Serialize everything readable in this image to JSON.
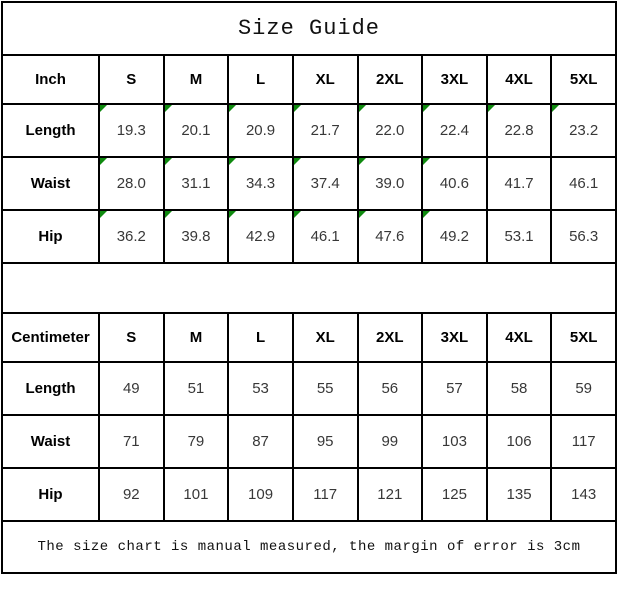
{
  "title": "Size Guide",
  "footer_note": "The size chart is manual measured, the margin of error is 3cm",
  "colors": {
    "grid": "#000000",
    "background": "#ffffff",
    "marker_green": "#0f8a0f",
    "header_text": "#000000",
    "value_text": "#383838"
  },
  "chart_data": [
    {
      "type": "table",
      "title": "Size Guide",
      "unit_label": "Inch",
      "sizes": [
        "S",
        "M",
        "L",
        "XL",
        "2XL",
        "3XL",
        "4XL",
        "5XL"
      ],
      "rows": [
        {
          "label": "Length",
          "values": [
            "19.3",
            "20.1",
            "20.9",
            "21.7",
            "22.0",
            "22.4",
            "22.8",
            "23.2"
          ],
          "markers": [
            1,
            1,
            1,
            1,
            1,
            1,
            1,
            1
          ]
        },
        {
          "label": "Waist",
          "values": [
            "28.0",
            "31.1",
            "34.3",
            "37.4",
            "39.0",
            "40.6",
            "41.7",
            "46.1"
          ],
          "markers": [
            1,
            1,
            1,
            1,
            1,
            1,
            0,
            0
          ]
        },
        {
          "label": "Hip",
          "values": [
            "36.2",
            "39.8",
            "42.9",
            "46.1",
            "47.6",
            "49.2",
            "53.1",
            "56.3"
          ],
          "markers": [
            1,
            1,
            1,
            1,
            1,
            1,
            0,
            0
          ]
        }
      ]
    },
    {
      "type": "table",
      "unit_label": "Centimeter",
      "sizes": [
        "S",
        "M",
        "L",
        "XL",
        "2XL",
        "3XL",
        "4XL",
        "5XL"
      ],
      "rows": [
        {
          "label": "Length",
          "values": [
            "49",
            "51",
            "53",
            "55",
            "56",
            "57",
            "58",
            "59"
          ],
          "markers": [
            0,
            0,
            0,
            0,
            0,
            0,
            0,
            0
          ]
        },
        {
          "label": "Waist",
          "values": [
            "71",
            "79",
            "87",
            "95",
            "99",
            "103",
            "106",
            "117"
          ],
          "markers": [
            0,
            0,
            0,
            0,
            0,
            0,
            0,
            0
          ]
        },
        {
          "label": "Hip",
          "values": [
            "92",
            "101",
            "109",
            "117",
            "121",
            "125",
            "135",
            "143"
          ],
          "markers": [
            0,
            0,
            0,
            0,
            0,
            0,
            0,
            0
          ]
        }
      ]
    }
  ]
}
